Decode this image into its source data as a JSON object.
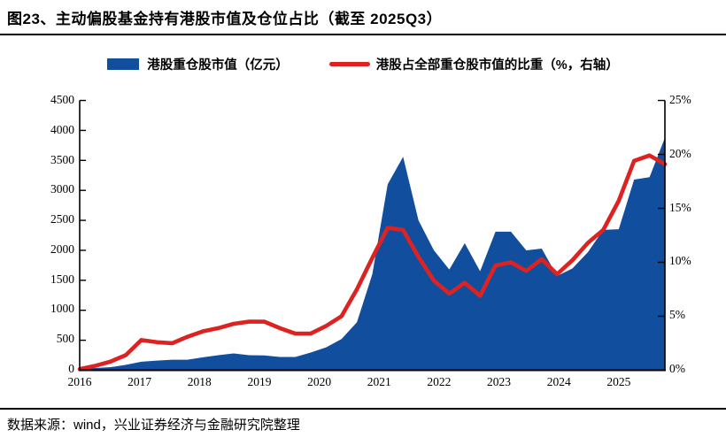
{
  "title": "图23、主动偏股基金持有港股市值及仓位占比（截至 2025Q3）",
  "legend": {
    "series1": "港股重仓股市值（亿元）",
    "series2": "港股占全部重仓股市值的比重（%，右轴）"
  },
  "source": "数据来源：wind，兴业证券经济与金融研究院整理",
  "colors": {
    "area_blue": "#114E9E",
    "line_red": "#DC2321",
    "axis_black": "#000000",
    "background": "#FFFFFF"
  },
  "chart_data": {
    "type": "area",
    "subtype": "area-left-axis with line-right-axis combo",
    "title": "主动偏股基金持有港股市值及仓位占比",
    "quarters": [
      "2016Q1",
      "2016Q2",
      "2016Q3",
      "2016Q4",
      "2017Q1",
      "2017Q2",
      "2017Q3",
      "2017Q4",
      "2018Q1",
      "2018Q2",
      "2018Q3",
      "2018Q4",
      "2019Q1",
      "2019Q2",
      "2019Q3",
      "2019Q4",
      "2020Q1",
      "2020Q2",
      "2020Q3",
      "2020Q4",
      "2021Q1",
      "2021Q2",
      "2021Q3",
      "2021Q4",
      "2022Q1",
      "2022Q2",
      "2022Q3",
      "2022Q4",
      "2023Q1",
      "2023Q2",
      "2023Q3",
      "2023Q4",
      "2024Q1",
      "2024Q2",
      "2024Q3",
      "2024Q4",
      "2025Q1",
      "2025Q2",
      "2025Q3"
    ],
    "series": [
      {
        "name": "港股重仓股市值（亿元）",
        "type": "area",
        "axis": "left",
        "color": "#114E9E",
        "values": [
          20,
          35,
          50,
          90,
          140,
          160,
          175,
          175,
          215,
          250,
          280,
          250,
          245,
          220,
          220,
          295,
          380,
          520,
          800,
          1600,
          3100,
          3560,
          2500,
          2000,
          1680,
          2120,
          1650,
          2310,
          2310,
          2000,
          2030,
          1570,
          1700,
          1970,
          2340,
          2350,
          3180,
          3220,
          3880
        ]
      },
      {
        "name": "港股占全部重仓股市值的比重（%，右轴）",
        "type": "line",
        "axis": "right",
        "color": "#DC2321",
        "values": [
          0.1,
          0.4,
          0.8,
          1.4,
          2.8,
          2.6,
          2.5,
          3.1,
          3.6,
          3.9,
          4.3,
          4.5,
          4.5,
          3.9,
          3.4,
          3.4,
          4.1,
          5.0,
          7.5,
          10.4,
          13.2,
          13.0,
          10.5,
          8.3,
          7.1,
          8.1,
          6.9,
          9.7,
          10.0,
          9.2,
          10.3,
          8.9,
          10.2,
          11.8,
          13.0,
          15.7,
          19.4,
          19.9,
          19.1
        ]
      }
    ],
    "left_axis": {
      "min": 0,
      "max": 4500,
      "tick_step": 500,
      "tick_labels": [
        "0",
        "500",
        "1000",
        "1500",
        "2000",
        "2500",
        "3000",
        "3500",
        "4000",
        "4500"
      ]
    },
    "right_axis": {
      "min": 0,
      "max": 25,
      "tick_step": 5,
      "tick_labels": [
        "0%",
        "5%",
        "10%",
        "15%",
        "20%",
        "25%"
      ]
    },
    "x_tick_labels": [
      "2016",
      "2017",
      "2018",
      "2019",
      "2020",
      "2021",
      "2022",
      "2023",
      "2024",
      "2025"
    ],
    "grid": "off",
    "legend_position": "top-center"
  }
}
